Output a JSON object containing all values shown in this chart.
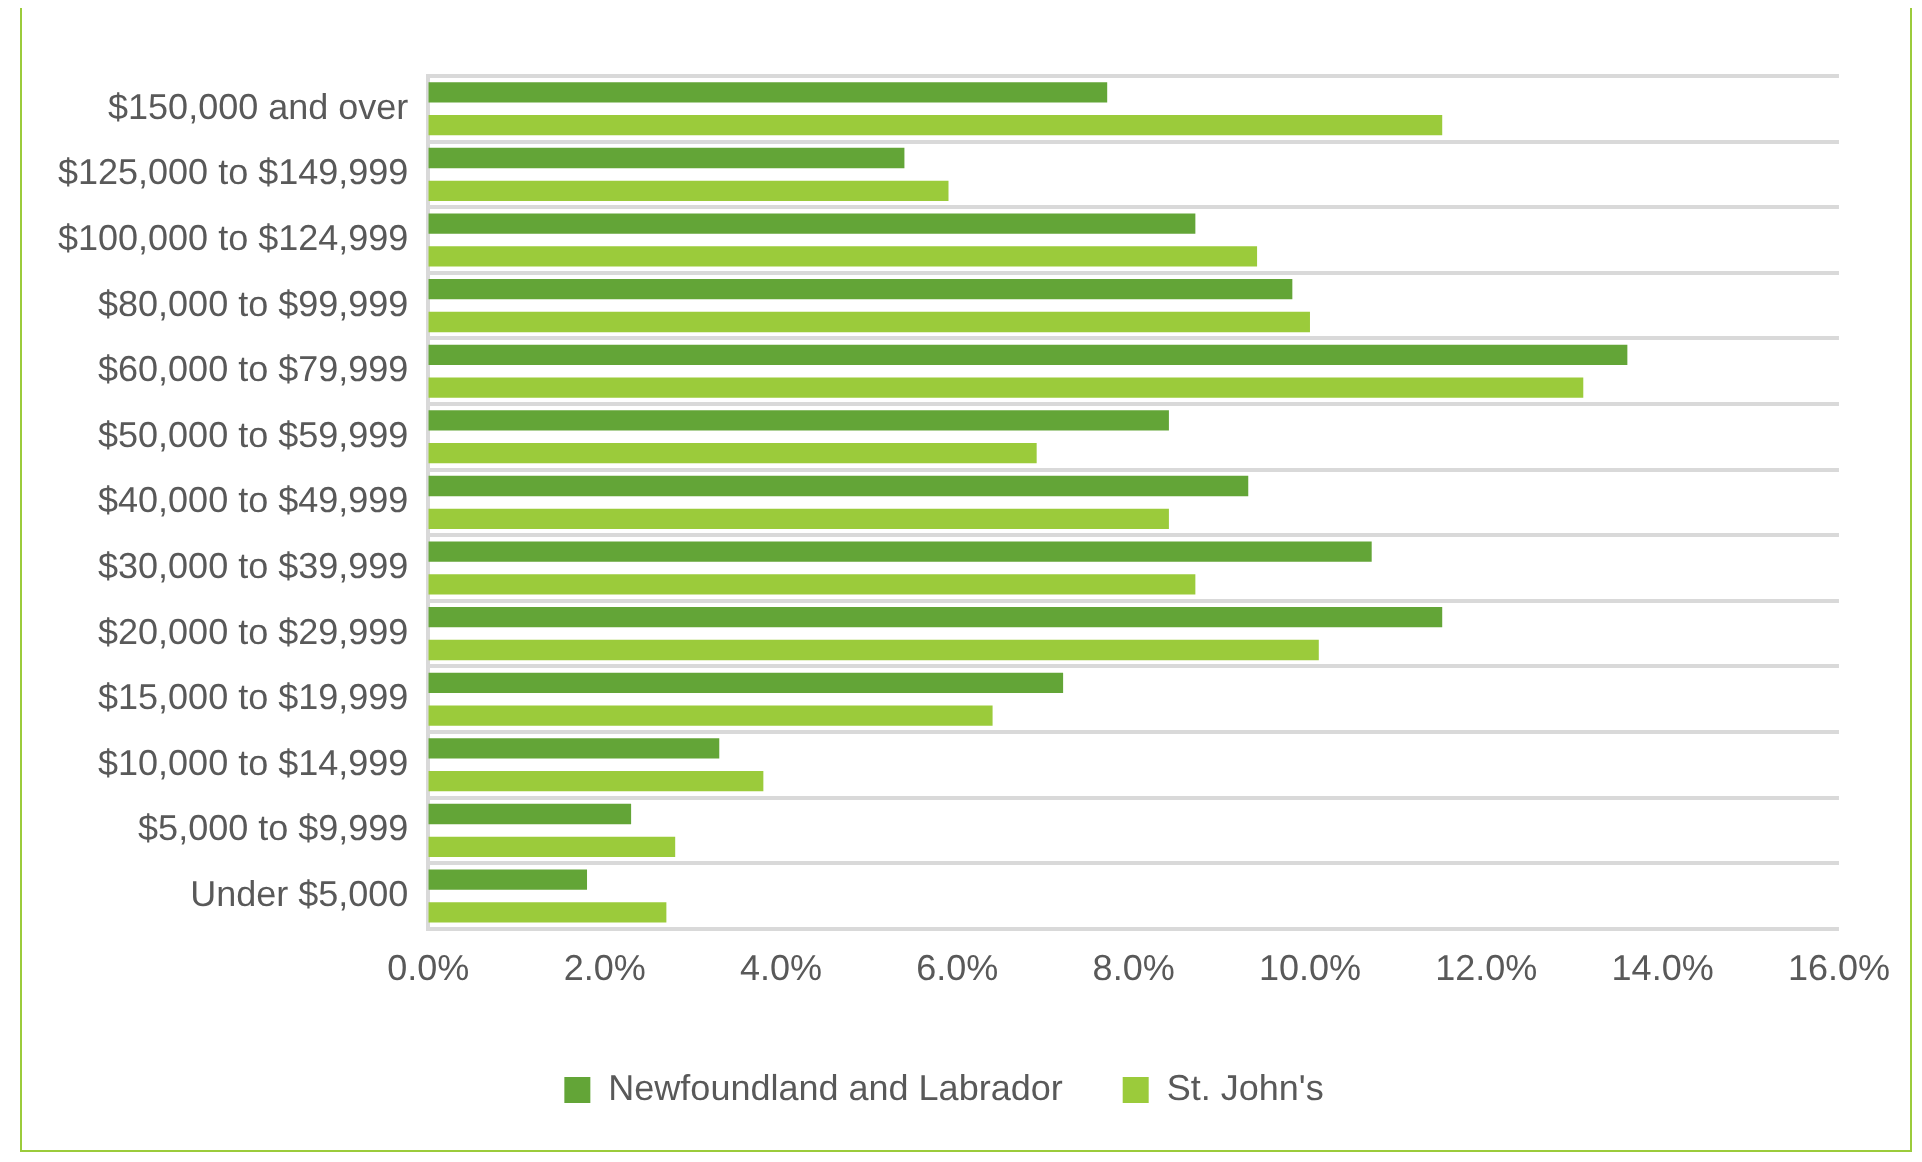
{
  "chart_data": {
    "type": "bar",
    "orientation": "horizontal",
    "categories": [
      "$150,000 and over",
      "$125,000 to $149,999",
      "$100,000 to $124,999",
      "$80,000 to $99,999",
      "$60,000 to $79,999",
      "$50,000 to $59,999",
      "$40,000 to $49,999",
      "$30,000 to $39,999",
      "$20,000 to $29,999",
      "$15,000 to $19,999",
      "$10,000 to $14,999",
      "$5,000 to $9,999",
      "Under $5,000"
    ],
    "series": [
      {
        "name": "Newfoundland and Labrador",
        "color": "#63a537",
        "values": [
          7.7,
          5.4,
          8.7,
          9.8,
          13.6,
          8.4,
          9.3,
          10.7,
          11.5,
          7.2,
          3.3,
          2.3,
          1.8
        ]
      },
      {
        "name": "St. John's",
        "color": "#9bcb3b",
        "values": [
          11.5,
          5.9,
          9.4,
          10.0,
          13.1,
          6.9,
          8.4,
          8.7,
          10.1,
          6.4,
          3.8,
          2.8,
          2.7
        ]
      }
    ],
    "xlim": [
      0,
      16
    ],
    "xticks": [
      {
        "value": 0,
        "label": "0.0%"
      },
      {
        "value": 2,
        "label": "2.0%"
      },
      {
        "value": 4,
        "label": "4.0%"
      },
      {
        "value": 6,
        "label": "6.0%"
      },
      {
        "value": 8,
        "label": "8.0%"
      },
      {
        "value": 10,
        "label": "10.0%"
      },
      {
        "value": 12,
        "label": "12.0%"
      },
      {
        "value": 14,
        "label": "14.0%"
      },
      {
        "value": 16,
        "label": "16.0%"
      }
    ],
    "grid": "y",
    "legend": "bottom"
  }
}
